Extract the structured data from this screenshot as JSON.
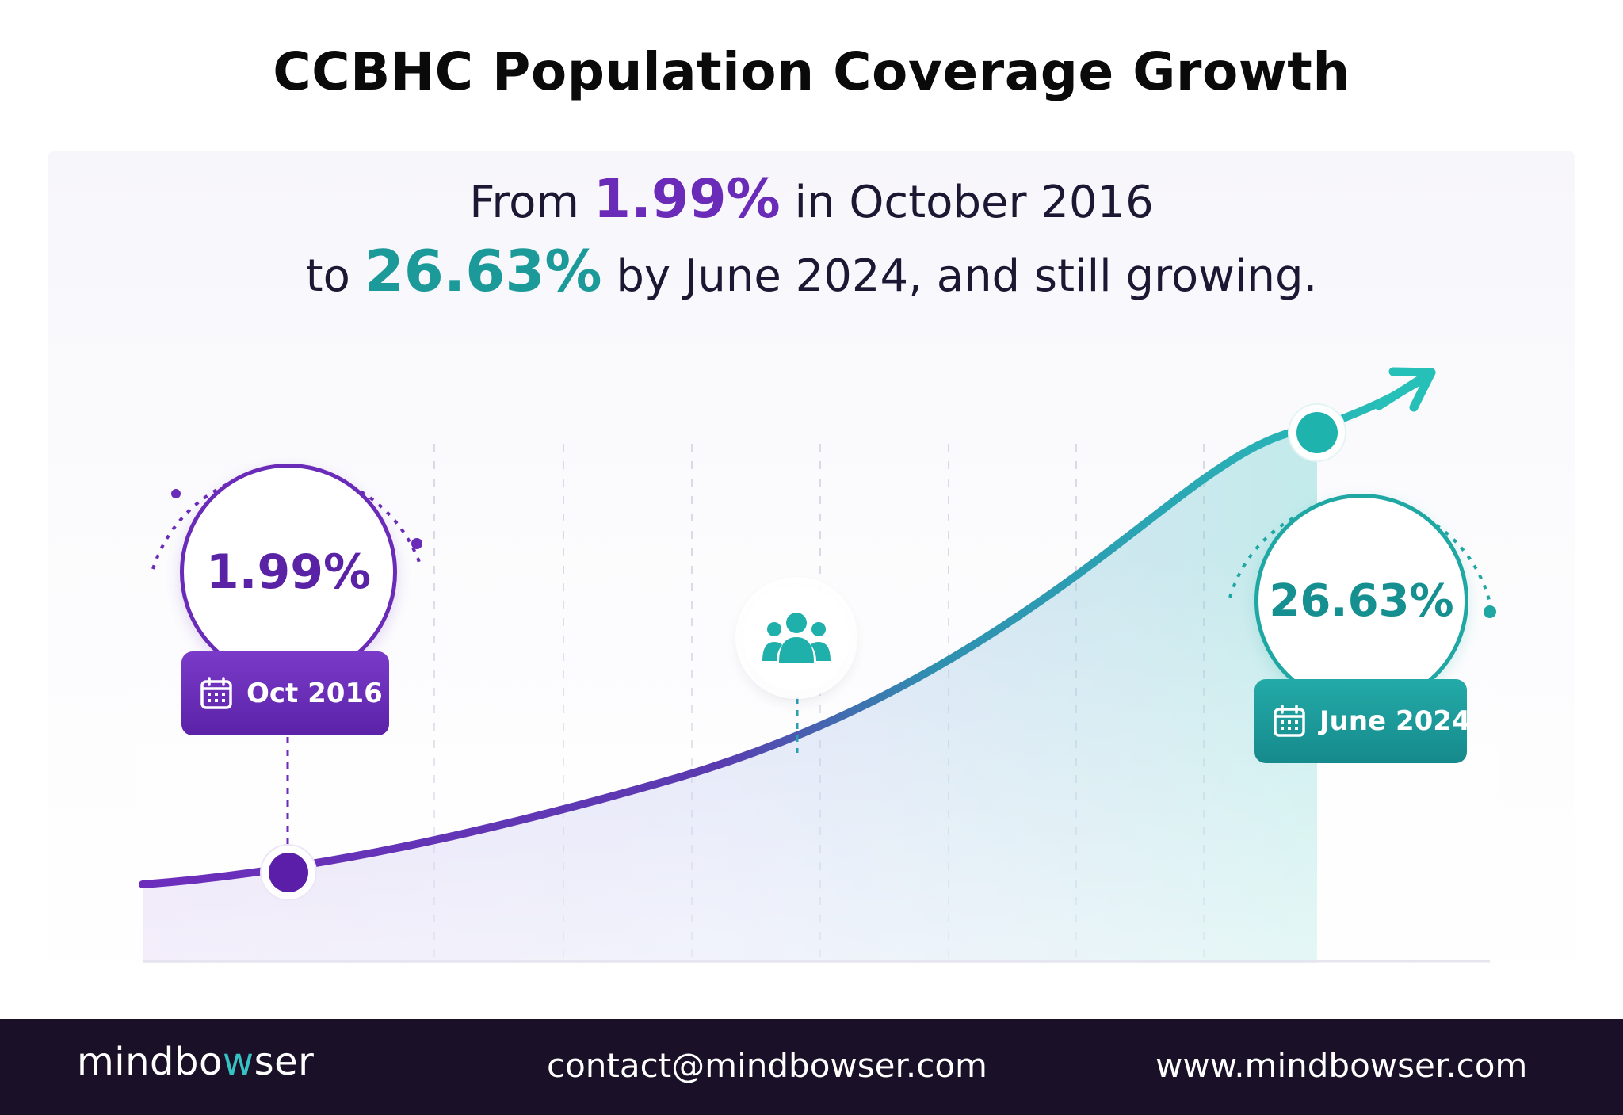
{
  "title": "CCBHC Population Coverage Growth",
  "headline": {
    "line1_prefix": "From",
    "line1_value": "1.99%",
    "line1_suffix": "in October 2016",
    "line2_prefix": "to",
    "line2_value": "26.63%",
    "line2_suffix": "by June 2024, and still growing."
  },
  "start_point": {
    "value_label": "1.99%",
    "date_label": "Oct 2016"
  },
  "end_point": {
    "value_label": "26.63%",
    "date_label": "June 2024"
  },
  "colors": {
    "purple": "#6a2bb8",
    "teal": "#1fa7a4",
    "footer_bg": "#1a1128"
  },
  "icons": [
    "calendar-icon",
    "people-icon",
    "arrow-up-right-icon"
  ],
  "chart_data": {
    "type": "line",
    "title": "CCBHC Population Coverage Growth",
    "xlabel": "",
    "ylabel": "",
    "series": [
      {
        "values": [
          {
            "x": "Oct 2016",
            "y": 1.99
          },
          {
            "x": "June 2024",
            "y": 26.63
          }
        ]
      }
    ],
    "grid": true,
    "trend": "increasing"
  },
  "footer": {
    "logo_part1": "mindbo",
    "logo_part2": "w",
    "logo_part3": "ser",
    "email": "contact@mindbowser.com",
    "website": "www.mindbowser.com"
  }
}
